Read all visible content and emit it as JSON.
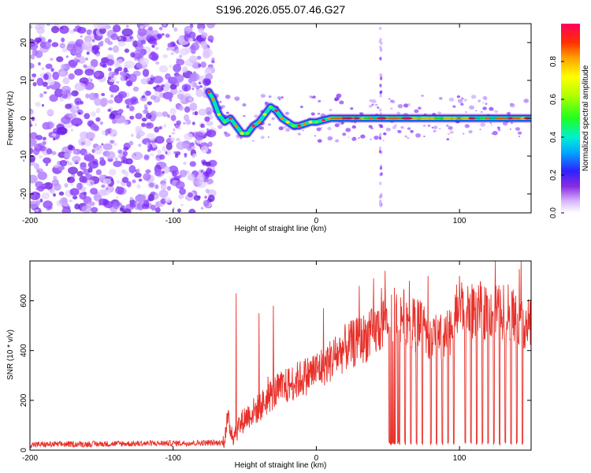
{
  "title": "S196.2026.055.07.46.G27",
  "colors": {
    "snr_line": "#e8302a",
    "frame": "#000000",
    "ridge": "#00e6b0"
  },
  "chart_data": [
    {
      "type": "heatmap",
      "xlabel": "Height of straight line (km)",
      "ylabel": "Frequency (Hz)",
      "xlim": [
        -200,
        150
      ],
      "ylim": [
        -25,
        25
      ],
      "xticks": [
        -200,
        -100,
        0,
        100
      ],
      "xtick_labels": [
        "-200",
        "-100",
        "0",
        "100"
      ],
      "yticks": [
        -20,
        -10,
        0,
        10,
        20
      ],
      "ytick_labels": [
        "-20",
        "-10",
        "0",
        "10",
        "20"
      ],
      "noise_region_x": [
        -200,
        -75
      ],
      "ridge": {
        "x": [
          -75,
          -72,
          -68,
          -64,
          -60,
          -56,
          -52,
          -48,
          -44,
          -40,
          -36,
          -32,
          -28,
          -24,
          -20,
          -16,
          -12,
          -8,
          -4,
          0,
          5,
          10,
          15,
          20,
          30,
          40,
          45,
          60,
          80,
          100,
          120,
          140,
          150
        ],
        "y": [
          7,
          5,
          1,
          -1,
          0,
          -2,
          -4,
          -4,
          -2,
          -1,
          1,
          3,
          2,
          0,
          -1,
          -2,
          -2,
          -1.5,
          -1,
          -1,
          -0.5,
          0,
          0,
          0,
          0,
          0,
          0,
          0,
          0,
          0,
          0,
          0,
          0
        ]
      },
      "vertical_streak_x": 45,
      "colorbar": {
        "label": "Normalized spectral amplitude",
        "range": [
          0,
          1
        ],
        "ticks": [
          0.0,
          0.2,
          0.4,
          0.6,
          0.8
        ],
        "tick_labels": [
          "0.0",
          "0.2",
          "0.4",
          "0.6",
          "0.8"
        ]
      }
    },
    {
      "type": "line",
      "xlabel": "Height of straight line (km)",
      "ylabel": "SNR (10 * v/v)",
      "xlim": [
        -200,
        150
      ],
      "ylim": [
        0,
        760
      ],
      "xticks": [
        -200,
        -100,
        0,
        100
      ],
      "xtick_labels": [
        "-200",
        "-100",
        "0",
        "100"
      ],
      "yticks": [
        0,
        200,
        400,
        600
      ],
      "ytick_labels": [
        "0",
        "200",
        "400",
        "600"
      ],
      "baseline": {
        "x": [
          -200,
          -65,
          -62,
          -58,
          -50,
          -40,
          -30,
          -20,
          -10,
          0,
          10,
          20,
          30,
          40,
          45,
          50,
          60,
          70,
          80,
          90,
          100,
          110,
          120,
          130,
          140,
          150
        ],
        "y": [
          22,
          30,
          120,
          60,
          130,
          170,
          230,
          260,
          290,
          320,
          360,
          410,
          440,
          470,
          500,
          540,
          540,
          500,
          460,
          440,
          580,
          560,
          560,
          560,
          540,
          500
        ]
      },
      "spikes": [
        {
          "x": -56,
          "y": 630
        },
        {
          "x": -40,
          "y": 550
        },
        {
          "x": -30,
          "y": 580
        },
        {
          "x": 5,
          "y": 570
        },
        {
          "x": 30,
          "y": 660
        },
        {
          "x": 40,
          "y": 690
        },
        {
          "x": 48,
          "y": 720
        },
        {
          "x": 65,
          "y": 680
        },
        {
          "x": 78,
          "y": 700
        },
        {
          "x": 100,
          "y": 700
        },
        {
          "x": 112,
          "y": 740
        },
        {
          "x": 125,
          "y": 760
        },
        {
          "x": 143,
          "y": 760
        }
      ],
      "dropouts_x": [
        51,
        52,
        53,
        54,
        55,
        57,
        58,
        62,
        66,
        70,
        74,
        80,
        84,
        88,
        92,
        96,
        104,
        108,
        112,
        116,
        120,
        124,
        128,
        132,
        136,
        140,
        144
      ]
    }
  ]
}
